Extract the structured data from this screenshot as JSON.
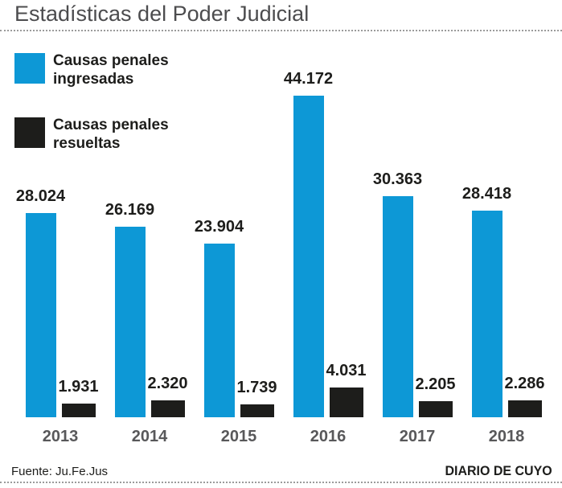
{
  "title": "Estadísticas del Poder Judicial",
  "legend": {
    "ingresadas": {
      "line1": "Causas penales",
      "line2": "ingresadas"
    },
    "resueltas": {
      "line1": "Causas penales",
      "line2": "resueltas"
    }
  },
  "footer": {
    "source": "Fuente: Ju.Fe.Jus",
    "credit": "DIARIO DE CUYO"
  },
  "colors": {
    "ingresadas": "#0d98d6",
    "resueltas": "#1d1d1b",
    "title": "#4c4c4e",
    "year_labels": "#58585a",
    "value_labels": "#1d1d1b",
    "rules": "#9b9b9b"
  },
  "chart_data": {
    "type": "bar",
    "title": "Estadísticas del Poder Judicial",
    "categories": [
      "2013",
      "2014",
      "2015",
      "2016",
      "2017",
      "2018"
    ],
    "series": [
      {
        "name": "Causas penales ingresadas",
        "color": "#0d98d6",
        "values": [
          28024,
          26169,
          23904,
          44172,
          30363,
          28418
        ],
        "labels": [
          "28.024",
          "26.169",
          "23.904",
          "44.172",
          "30.363",
          "28.418"
        ]
      },
      {
        "name": "Causas penales resueltas",
        "color": "#1d1d1b",
        "values": [
          1931,
          2320,
          1739,
          4031,
          2205,
          2286
        ],
        "labels": [
          "1.931",
          "2.320",
          "1.739",
          "4.031",
          "2.205",
          "2.286"
        ]
      }
    ],
    "xlabel": "",
    "ylabel": "",
    "ylim": [
      0,
      44172
    ],
    "grid": false,
    "value_labels": true,
    "legend_position": "top-left",
    "source": "Fuente: Ju.Fe.Jus",
    "credit": "DIARIO DE CUYO"
  }
}
